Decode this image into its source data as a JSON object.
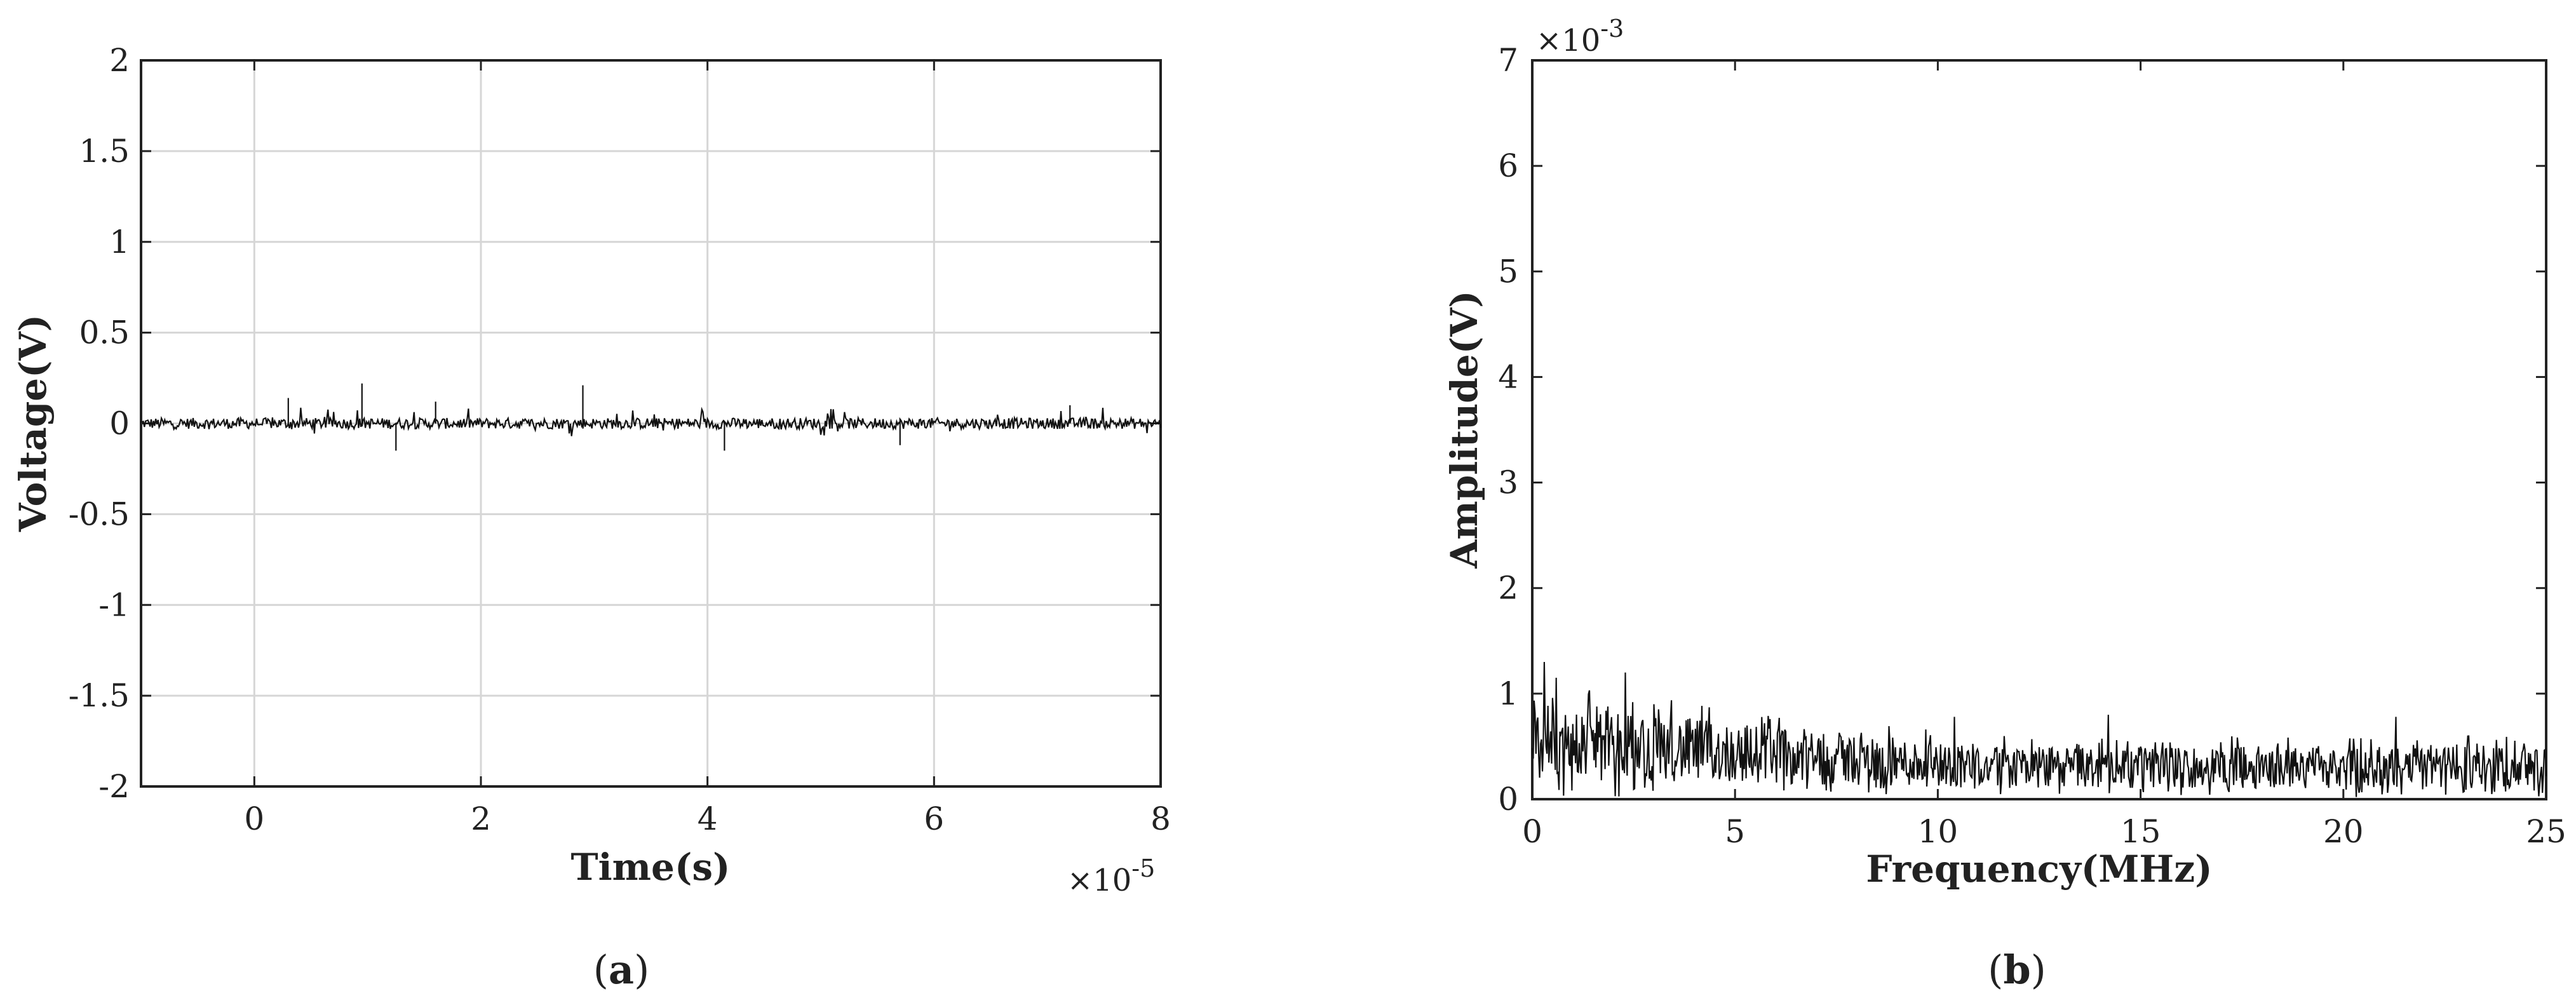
{
  "chart_data": [
    {
      "type": "line",
      "panel_label": "(a)",
      "panel_letter": "a",
      "xlabel": "Time(s)",
      "ylabel": "Voltage(V)",
      "x_exponent_prefix": "×10",
      "x_exponent": "-5",
      "xlim": [
        -1,
        8
      ],
      "ylim": [
        -2,
        2
      ],
      "xticks": [
        0,
        2,
        4,
        6,
        8
      ],
      "xtick_labels": [
        "0",
        "2",
        "4",
        "6",
        "8"
      ],
      "yticks": [
        -2,
        -1.5,
        -1,
        -0.5,
        0,
        0.5,
        1,
        1.5,
        2
      ],
      "ytick_labels": [
        "-2",
        "-1.5",
        "-1",
        "-0.5",
        "0",
        "0.5",
        "1",
        "1.5",
        "2"
      ],
      "grid": true,
      "series": [
        {
          "color": "#111111",
          "description": "noise signal around 0 V with occasional spikes",
          "baseline": 0,
          "noise_amplitude": 0.03,
          "spikes": [
            {
              "x": 0.3,
              "y": 0.14
            },
            {
              "x": 0.95,
              "y": 0.22
            },
            {
              "x": 1.25,
              "y": -0.15
            },
            {
              "x": 1.6,
              "y": 0.12
            },
            {
              "x": 2.9,
              "y": 0.21
            },
            {
              "x": 4.15,
              "y": -0.15
            },
            {
              "x": 5.7,
              "y": -0.12
            },
            {
              "x": 7.2,
              "y": 0.1
            }
          ]
        }
      ]
    },
    {
      "type": "line",
      "panel_label": "(b)",
      "panel_letter": "b",
      "xlabel": "Frequency(MHz)",
      "ylabel": "Amplitude(V)",
      "y_exponent_prefix": "×10",
      "y_exponent": "-3",
      "xlim": [
        0,
        25
      ],
      "ylim": [
        0,
        7
      ],
      "xticks": [
        0,
        5,
        10,
        15,
        20,
        25
      ],
      "xtick_labels": [
        "0",
        "5",
        "10",
        "15",
        "20",
        "25"
      ],
      "yticks": [
        0,
        1,
        2,
        3,
        4,
        5,
        6,
        7
      ],
      "ytick_labels": [
        "0",
        "1",
        "2",
        "3",
        "4",
        "5",
        "6",
        "7"
      ],
      "grid": false,
      "series": [
        {
          "color": "#111111",
          "description": "noise spectrum, amplitude roughly 0.5e-3 at low frequency decaying to ~0.3e-3",
          "start_level": 0.55,
          "end_level": 0.3,
          "peak_max": 1.3,
          "peaks": [
            {
              "x": 0.3,
              "y": 1.3
            },
            {
              "x": 0.6,
              "y": 1.15
            },
            {
              "x": 2.3,
              "y": 1.2
            },
            {
              "x": 3.0,
              "y": 0.9
            },
            {
              "x": 10.4,
              "y": 0.78
            },
            {
              "x": 14.2,
              "y": 0.8
            },
            {
              "x": 21.3,
              "y": 0.78
            }
          ]
        }
      ]
    }
  ]
}
